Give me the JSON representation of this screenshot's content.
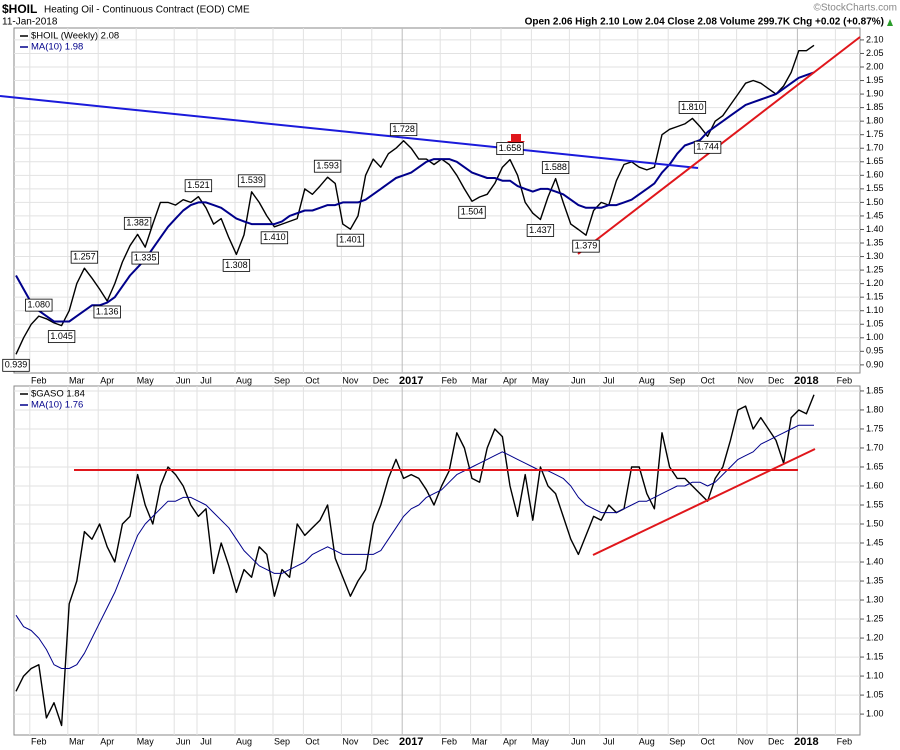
{
  "source": "©StockCharts.com",
  "chart_data": [
    {
      "type": "line",
      "title": "$HOIL",
      "subtitle": "Heating Oil - Continuous Contract (EOD) CME",
      "date": "11-Jan-2018",
      "stats": "Open 2.06 High 2.10 Low 2.04 Close 2.08 Volume 299.7K Chg +0.02 (+0.87%)",
      "legend": "top-left",
      "grid": true,
      "categories": [
        null,
        null,
        null,
        "Feb",
        null,
        null,
        null,
        null,
        "Mar",
        null,
        null,
        null,
        "Apr",
        null,
        null,
        null,
        null,
        "May",
        null,
        null,
        null,
        null,
        "Jun",
        null,
        null,
        "Jul",
        null,
        null,
        null,
        null,
        "Aug",
        null,
        null,
        null,
        null,
        "Sep",
        null,
        null,
        null,
        "Oct",
        null,
        null,
        null,
        null,
        "Nov",
        null,
        null,
        null,
        "Dec",
        null,
        null,
        null,
        "2017",
        null,
        null,
        null,
        null,
        "Feb",
        null,
        null,
        null,
        "Mar",
        null,
        null,
        null,
        "Apr",
        null,
        null,
        null,
        "May",
        null,
        null,
        null,
        null,
        "Jun",
        null,
        null,
        null,
        "Jul",
        null,
        null,
        null,
        null,
        "Aug",
        null,
        null,
        null,
        "Sep",
        null,
        null,
        null,
        "Oct",
        null,
        null,
        null,
        null,
        "Nov",
        null,
        null,
        null,
        "Dec",
        null,
        null,
        null,
        "2018",
        null,
        null,
        null,
        null,
        "Feb"
      ],
      "series": [
        {
          "name": "$HOIL (Weekly) 2.08",
          "color": "#000000",
          "values": [
            0.939,
            1.0,
            1.05,
            1.08,
            1.07,
            1.055,
            1.045,
            1.1,
            1.2,
            1.257,
            1.22,
            1.18,
            1.136,
            1.2,
            1.28,
            1.34,
            1.382,
            1.335,
            1.42,
            1.5,
            1.5,
            1.49,
            1.51,
            1.5,
            1.521,
            1.48,
            1.42,
            1.44,
            1.37,
            1.308,
            1.38,
            1.539,
            1.5,
            1.45,
            1.41,
            1.42,
            1.43,
            1.44,
            1.55,
            1.53,
            1.56,
            1.593,
            1.57,
            1.42,
            1.401,
            1.45,
            1.6,
            1.66,
            1.63,
            1.68,
            1.7,
            1.728,
            1.7,
            1.66,
            1.66,
            1.64,
            1.66,
            1.64,
            1.6,
            1.55,
            1.504,
            1.52,
            1.53,
            1.57,
            1.63,
            1.658,
            1.6,
            1.5,
            1.46,
            1.437,
            1.52,
            1.588,
            1.5,
            1.42,
            1.4,
            1.379,
            1.47,
            1.5,
            1.49,
            1.58,
            1.64,
            1.65,
            1.63,
            1.62,
            1.63,
            1.75,
            1.77,
            1.78,
            1.79,
            1.81,
            1.78,
            1.744,
            1.8,
            1.82,
            1.86,
            1.9,
            1.94,
            1.95,
            1.94,
            1.92,
            1.9,
            1.93,
            1.98,
            2.06,
            2.06,
            2.08,
            null,
            null,
            null,
            null
          ],
          "value_labels": [
            "0.939",
            null,
            null,
            "1.080",
            null,
            null,
            "1.045",
            null,
            null,
            "1.257",
            null,
            null,
            "1.136",
            null,
            null,
            null,
            "1.382",
            "1.335",
            null,
            null,
            null,
            null,
            null,
            null,
            "1.521",
            null,
            null,
            null,
            null,
            "1.308",
            null,
            "1.539",
            null,
            null,
            "1.410",
            null,
            null,
            null,
            null,
            null,
            null,
            "1.593",
            null,
            null,
            "1.401",
            null,
            null,
            null,
            null,
            null,
            null,
            "1.728",
            null,
            null,
            null,
            null,
            null,
            null,
            null,
            null,
            "1.504",
            null,
            null,
            null,
            null,
            "1.658",
            null,
            null,
            null,
            "1.437",
            null,
            "1.588",
            null,
            null,
            null,
            "1.379",
            null,
            null,
            null,
            null,
            null,
            null,
            null,
            null,
            null,
            null,
            null,
            null,
            null,
            "1.810",
            null,
            "1.744",
            null,
            null,
            null,
            null,
            null,
            null,
            null,
            null,
            null,
            null,
            null,
            null,
            null,
            null,
            null,
            null,
            null,
            null
          ]
        },
        {
          "name": "MA(10) 1.98",
          "color": "#00008b",
          "values": [
            1.23,
            1.18,
            1.13,
            1.1,
            1.08,
            1.06,
            1.06,
            1.06,
            1.08,
            1.1,
            1.12,
            1.12,
            1.13,
            1.15,
            1.19,
            1.23,
            1.26,
            1.29,
            1.33,
            1.37,
            1.41,
            1.44,
            1.47,
            1.49,
            1.5,
            1.5,
            1.49,
            1.48,
            1.46,
            1.44,
            1.43,
            1.42,
            1.42,
            1.42,
            1.42,
            1.43,
            1.45,
            1.46,
            1.47,
            1.47,
            1.48,
            1.49,
            1.49,
            1.5,
            1.5,
            1.5,
            1.51,
            1.53,
            1.55,
            1.57,
            1.59,
            1.6,
            1.61,
            1.63,
            1.65,
            1.66,
            1.66,
            1.66,
            1.65,
            1.63,
            1.61,
            1.6,
            1.59,
            1.59,
            1.58,
            1.58,
            1.56,
            1.55,
            1.54,
            1.55,
            1.55,
            1.54,
            1.53,
            1.51,
            1.49,
            1.48,
            1.48,
            1.48,
            1.49,
            1.49,
            1.5,
            1.51,
            1.53,
            1.55,
            1.57,
            1.61,
            1.64,
            1.68,
            1.71,
            1.72,
            1.73,
            1.76,
            1.78,
            1.8,
            1.82,
            1.84,
            1.86,
            1.87,
            1.88,
            1.89,
            1.9,
            1.92,
            1.94,
            1.96,
            1.97,
            1.98,
            null,
            null,
            null,
            null
          ]
        }
      ],
      "ylim": [
        0.87,
        2.144
      ],
      "yticks": [
        {
          "value": 0.9,
          "label": "0.90"
        },
        0.95,
        {
          "value": 1,
          "label": "1.00"
        },
        1.05,
        {
          "value": 1.1,
          "label": "1.10"
        },
        1.15,
        {
          "value": 1.2,
          "label": "1.20"
        },
        1.25,
        {
          "value": 1.3,
          "label": "1.30"
        },
        1.35,
        {
          "value": 1.4,
          "label": "1.40"
        },
        1.45,
        {
          "value": 1.5,
          "label": "1.50"
        },
        1.55,
        {
          "value": 1.6,
          "label": "1.60"
        },
        1.65,
        {
          "value": 1.7,
          "label": "1.70"
        },
        1.75,
        {
          "value": 1.8,
          "label": "1.80"
        },
        1.85,
        {
          "value": 1.9,
          "label": "1.90"
        },
        1.95,
        {
          "value": 2,
          "label": "2.00"
        },
        2.05,
        {
          "value": 2.1,
          "label": "2.10"
        }
      ]
    },
    {
      "type": "line",
      "legend": "top-left",
      "grid": true,
      "categories": [
        null,
        null,
        null,
        "Feb",
        null,
        null,
        null,
        null,
        "Mar",
        null,
        null,
        null,
        "Apr",
        null,
        null,
        null,
        null,
        "May",
        null,
        null,
        null,
        null,
        "Jun",
        null,
        null,
        "Jul",
        null,
        null,
        null,
        null,
        "Aug",
        null,
        null,
        null,
        null,
        "Sep",
        null,
        null,
        null,
        "Oct",
        null,
        null,
        null,
        null,
        "Nov",
        null,
        null,
        null,
        "Dec",
        null,
        null,
        null,
        "2017",
        null,
        null,
        null,
        null,
        "Feb",
        null,
        null,
        null,
        "Mar",
        null,
        null,
        null,
        "Apr",
        null,
        null,
        null,
        "May",
        null,
        null,
        null,
        null,
        "Jun",
        null,
        null,
        null,
        "Jul",
        null,
        null,
        null,
        null,
        "Aug",
        null,
        null,
        null,
        "Sep",
        null,
        null,
        null,
        "Oct",
        null,
        null,
        null,
        null,
        "Nov",
        null,
        null,
        null,
        "Dec",
        null,
        null,
        null,
        "2018",
        null,
        null,
        null,
        null,
        "Feb"
      ],
      "series": [
        {
          "name": "$GASO 1.84",
          "color": "#000000",
          "values": [
            1.06,
            1.1,
            1.12,
            1.13,
            0.99,
            1.03,
            0.97,
            1.29,
            1.35,
            1.48,
            1.46,
            1.5,
            1.44,
            1.4,
            1.5,
            1.52,
            1.63,
            1.55,
            1.5,
            1.6,
            1.65,
            1.63,
            1.6,
            1.55,
            1.52,
            1.54,
            1.37,
            1.45,
            1.39,
            1.32,
            1.38,
            1.36,
            1.44,
            1.42,
            1.31,
            1.38,
            1.36,
            1.5,
            1.47,
            1.49,
            1.51,
            1.55,
            1.41,
            1.36,
            1.31,
            1.35,
            1.38,
            1.5,
            1.55,
            1.62,
            1.67,
            1.62,
            1.63,
            1.62,
            1.59,
            1.55,
            1.6,
            1.64,
            1.74,
            1.7,
            1.62,
            1.61,
            1.7,
            1.75,
            1.73,
            1.6,
            1.52,
            1.63,
            1.51,
            1.65,
            1.6,
            1.58,
            1.52,
            1.46,
            1.42,
            1.47,
            1.52,
            1.51,
            1.55,
            1.53,
            1.54,
            1.65,
            1.65,
            1.58,
            1.54,
            1.74,
            1.65,
            1.62,
            1.62,
            1.6,
            1.58,
            1.56,
            1.62,
            1.65,
            1.72,
            1.8,
            1.81,
            1.75,
            1.78,
            1.75,
            1.72,
            1.66,
            1.78,
            1.8,
            1.79,
            1.84,
            null,
            null,
            null,
            null
          ]
        },
        {
          "name": "MA(10) 1.76",
          "color": "#00008b",
          "values": [
            1.26,
            1.23,
            1.22,
            1.2,
            1.17,
            1.13,
            1.12,
            1.12,
            1.13,
            1.16,
            1.2,
            1.24,
            1.28,
            1.32,
            1.37,
            1.42,
            1.47,
            1.5,
            1.52,
            1.54,
            1.56,
            1.56,
            1.57,
            1.57,
            1.56,
            1.55,
            1.53,
            1.51,
            1.49,
            1.46,
            1.43,
            1.41,
            1.39,
            1.38,
            1.37,
            1.37,
            1.38,
            1.39,
            1.4,
            1.42,
            1.43,
            1.44,
            1.43,
            1.42,
            1.42,
            1.42,
            1.42,
            1.42,
            1.43,
            1.46,
            1.49,
            1.52,
            1.54,
            1.55,
            1.57,
            1.58,
            1.59,
            1.61,
            1.63,
            1.64,
            1.65,
            1.66,
            1.67,
            1.68,
            1.69,
            1.68,
            1.67,
            1.66,
            1.65,
            1.64,
            1.64,
            1.63,
            1.62,
            1.6,
            1.57,
            1.55,
            1.54,
            1.53,
            1.53,
            1.53,
            1.54,
            1.55,
            1.56,
            1.56,
            1.57,
            1.58,
            1.59,
            1.6,
            1.6,
            1.61,
            1.61,
            1.6,
            1.61,
            1.63,
            1.65,
            1.67,
            1.68,
            1.69,
            1.71,
            1.72,
            1.73,
            1.74,
            1.75,
            1.76,
            1.76,
            1.76,
            null,
            null,
            null,
            null
          ]
        }
      ],
      "ylim": [
        0.945,
        1.863
      ],
      "yticks": [
        {
          "value": 1,
          "label": "1.00"
        },
        1.05,
        {
          "value": 1.1,
          "label": "1.10"
        },
        1.15,
        {
          "value": 1.2,
          "label": "1.20"
        },
        1.25,
        {
          "value": 1.3,
          "label": "1.30"
        },
        1.35,
        {
          "value": 1.4,
          "label": "1.40"
        },
        1.45,
        {
          "value": 1.5,
          "label": "1.50"
        },
        1.55,
        {
          "value": 1.6,
          "label": "1.60"
        },
        1.65,
        {
          "value": 1.7,
          "label": "1.70"
        },
        1.75,
        {
          "value": 1.8,
          "label": "1.80"
        },
        1.85
      ]
    }
  ]
}
